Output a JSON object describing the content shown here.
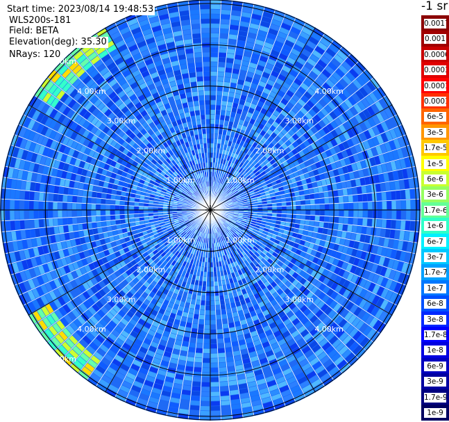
{
  "info": {
    "start_time": "Start time: 2023/08/14 19:48:53",
    "instrument": "WLS200s-181",
    "field": "Field: BETA",
    "elevation": "Elevation(deg): 35.30",
    "nrays": "NRays: 120"
  },
  "map": {
    "ring_labels": [
      "1.00km",
      "2.00km",
      "3.00km",
      "4.00km",
      "5.00km"
    ],
    "ring_distances_km": [
      1,
      2,
      3,
      4,
      5
    ],
    "max_range_km": 5.1,
    "ray_count": 120,
    "spoke_angles_deg": [
      0,
      30,
      60,
      90,
      120,
      150,
      180,
      210,
      240,
      270,
      300,
      330
    ]
  },
  "colorbar": {
    "title": "-1 sr",
    "ticks": [
      "0.0017",
      "0.001",
      "0.0006",
      "0.0003",
      "0.00017",
      "0.0001",
      "6e-5",
      "3e-5",
      "1.7e-5",
      "1e-5",
      "6e-6",
      "3e-6",
      "1.7e-6",
      "1e-6",
      "6e-7",
      "3e-7",
      "1.7e-7",
      "1e-7",
      "6e-8",
      "3e-8",
      "1.7e-8",
      "1e-8",
      "6e-9",
      "3e-9",
      "1.7e-9",
      "1e-9"
    ],
    "colors": [
      "#8b0000",
      "#a00000",
      "#c80000",
      "#e00000",
      "#ff0000",
      "#ff3000",
      "#ff6400",
      "#ff9600",
      "#ffc800",
      "#ffff00",
      "#c8ff30",
      "#96ff60",
      "#64ff96",
      "#30ffc8",
      "#00f0ff",
      "#00c8ff",
      "#00a0ff",
      "#0078ff",
      "#0050ff",
      "#0028ff",
      "#0000ff",
      "#0000e0",
      "#0000c0",
      "#0000a0",
      "#000080",
      "#000060"
    ]
  }
}
